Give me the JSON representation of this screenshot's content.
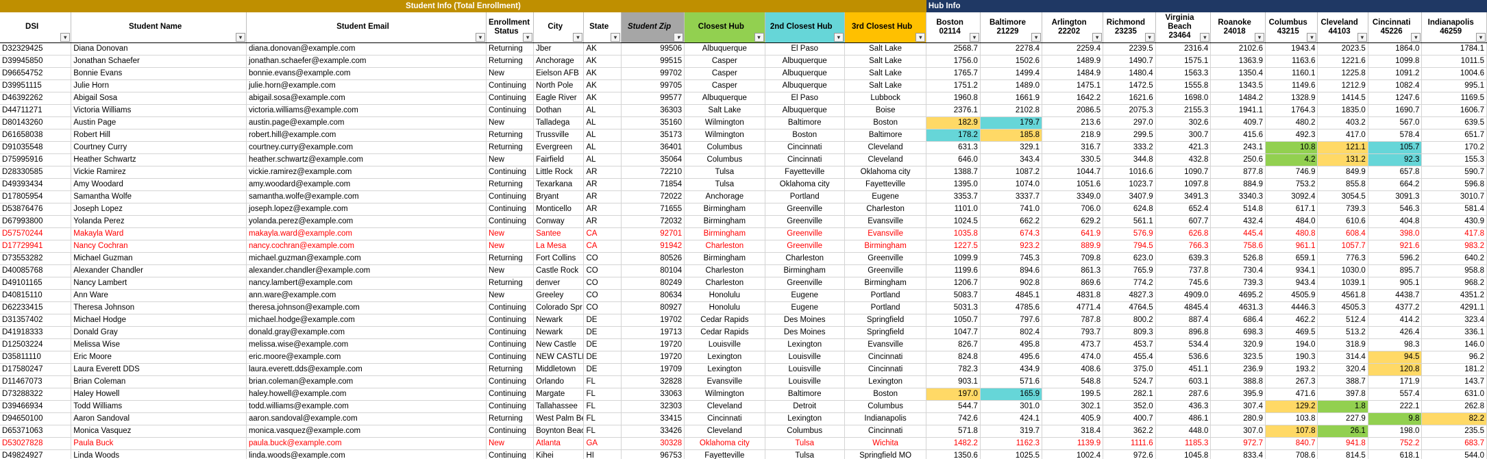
{
  "groups": {
    "student_info": "Student Info (Total Enrollment)",
    "hub_info": "Hub Info"
  },
  "headers": [
    {
      "label": "DSI"
    },
    {
      "label": "Student Name"
    },
    {
      "label": "Student Email"
    },
    {
      "label": "Enrollment Status"
    },
    {
      "label": "City"
    },
    {
      "label": "State"
    },
    {
      "label": "Student Zip"
    },
    {
      "label": "Closest Hub"
    },
    {
      "label": "2nd Closest Hub"
    },
    {
      "label": "3rd Closest Hub"
    },
    {
      "label": "Boston",
      "zip": "02114"
    },
    {
      "label": "Baltimore",
      "zip": "21229"
    },
    {
      "label": "Arlington",
      "zip": "22202"
    },
    {
      "label": "Richmond",
      "zip": "23235"
    },
    {
      "label": "Virginia Beach",
      "zip": "23464"
    },
    {
      "label": "Roanoke",
      "zip": "24018"
    },
    {
      "label": "Columbus",
      "zip": "43215"
    },
    {
      "label": "Cleveland",
      "zip": "44103"
    },
    {
      "label": "Cincinnati",
      "zip": "45226"
    },
    {
      "label": "Indianapolis",
      "zip": "46259"
    }
  ],
  "colors": {
    "student_group": "#bf8f00",
    "hub_group": "#1f3864",
    "closest": "#92d050",
    "second": "#66d6d8",
    "third": "#ffc000",
    "zip_header": "#a6a6a6",
    "red_row": "#ff0000",
    "hl_yellow": "#ffd966",
    "hl_cyan": "#66d6d8",
    "hl_green": "#92d050"
  },
  "rows": [
    {
      "cells": [
        "D32329425",
        "Diana Donovan",
        "diana.donovan@example.com",
        "Returning",
        "Jber",
        "AK",
        "99506",
        "Albuquerque",
        "El Paso",
        "Salt Lake",
        "2568.7",
        "2278.4",
        "2259.4",
        "2239.5",
        "2316.4",
        "2102.6",
        "1943.4",
        "2023.5",
        "1864.0",
        "1784.1"
      ]
    },
    {
      "cells": [
        "D39945850",
        "Jonathan Schaefer",
        "jonathan.schaefer@example.com",
        "Returning",
        "Anchorage",
        "AK",
        "99515",
        "Casper",
        "Albuquerque",
        "Salt Lake",
        "1756.0",
        "1502.6",
        "1489.9",
        "1490.7",
        "1575.1",
        "1363.9",
        "1163.6",
        "1221.6",
        "1099.8",
        "1011.5"
      ]
    },
    {
      "cells": [
        "D96654752",
        "Bonnie Evans",
        "bonnie.evans@example.com",
        "New",
        "Eielson AFB",
        "AK",
        "99702",
        "Casper",
        "Albuquerque",
        "Salt Lake",
        "1765.7",
        "1499.4",
        "1484.9",
        "1480.4",
        "1563.3",
        "1350.4",
        "1160.1",
        "1225.8",
        "1091.2",
        "1004.6"
      ]
    },
    {
      "cells": [
        "D39951115",
        "Julie Horn",
        "julie.horn@example.com",
        "Continuing",
        "North Pole",
        "AK",
        "99705",
        "Casper",
        "Albuquerque",
        "Salt Lake",
        "1751.2",
        "1489.0",
        "1475.1",
        "1472.5",
        "1555.8",
        "1343.5",
        "1149.6",
        "1212.9",
        "1082.4",
        "995.1"
      ]
    },
    {
      "cells": [
        "D46392262",
        "Abigail Sosa",
        "abigail.sosa@example.com",
        "Continuing",
        "Eagle River",
        "AK",
        "99577",
        "Albuquerque",
        "El Paso",
        "Lubbock",
        "1960.8",
        "1661.9",
        "1642.2",
        "1621.6",
        "1698.0",
        "1484.2",
        "1328.9",
        "1414.5",
        "1247.6",
        "1169.5"
      ]
    },
    {
      "cells": [
        "D44711271",
        "Victoria Williams",
        "victoria.williams@example.com",
        "Continuing",
        "Dothan",
        "AL",
        "36303",
        "Salt Lake",
        "Albuquerque",
        "Boise",
        "2376.1",
        "2102.8",
        "2086.5",
        "2075.3",
        "2155.3",
        "1941.1",
        "1764.3",
        "1835.0",
        "1690.7",
        "1606.7"
      ]
    },
    {
      "cells": [
        "D80143260",
        "Austin Page",
        "austin.page@example.com",
        "New",
        "Talladega",
        "AL",
        "35160",
        "Wilmington",
        "Baltimore",
        "Boston",
        "182.9",
        "179.7",
        "213.6",
        "297.0",
        "302.6",
        "409.7",
        "480.2",
        "403.2",
        "567.0",
        "639.5"
      ],
      "hl": {
        "10": "y",
        "11": "c"
      }
    },
    {
      "cells": [
        "D61658038",
        "Robert Hill",
        "robert.hill@example.com",
        "Returning",
        "Trussville",
        "AL",
        "35173",
        "Wilmington",
        "Boston",
        "Baltimore",
        "178.2",
        "185.8",
        "218.9",
        "299.5",
        "300.7",
        "415.6",
        "492.3",
        "417.0",
        "578.4",
        "651.7"
      ],
      "hl": {
        "10": "c",
        "11": "y"
      }
    },
    {
      "cells": [
        "D91035548",
        "Courtney Curry",
        "courtney.curry@example.com",
        "Returning",
        "Evergreen",
        "AL",
        "36401",
        "Columbus",
        "Cincinnati",
        "Cleveland",
        "631.3",
        "329.1",
        "316.7",
        "333.2",
        "421.3",
        "243.1",
        "10.8",
        "121.1",
        "105.7",
        "170.2"
      ],
      "hl": {
        "16": "g",
        "17": "y",
        "18": "c"
      }
    },
    {
      "cells": [
        "D75995916",
        "Heather Schwartz",
        "heather.schwartz@example.com",
        "New",
        "Fairfield",
        "AL",
        "35064",
        "Columbus",
        "Cincinnati",
        "Cleveland",
        "646.0",
        "343.4",
        "330.5",
        "344.8",
        "432.8",
        "250.6",
        "4.2",
        "131.2",
        "92.3",
        "155.3"
      ],
      "hl": {
        "16": "g",
        "17": "y",
        "18": "c"
      }
    },
    {
      "cells": [
        "D28330585",
        "Vickie Ramirez",
        "vickie.ramirez@example.com",
        "Continuing",
        "Little Rock",
        "AR",
        "72210",
        "Tulsa",
        "Fayetteville",
        "Oklahoma city",
        "1388.7",
        "1087.2",
        "1044.7",
        "1016.6",
        "1090.7",
        "877.8",
        "746.9",
        "849.9",
        "657.8",
        "590.7"
      ]
    },
    {
      "cells": [
        "D49393434",
        "Amy Woodard",
        "amy.woodard@example.com",
        "Returning",
        "Texarkana",
        "AR",
        "71854",
        "Tulsa",
        "Oklahoma city",
        "Fayetteville",
        "1395.0",
        "1074.0",
        "1051.6",
        "1023.7",
        "1097.8",
        "884.9",
        "753.2",
        "855.8",
        "664.2",
        "596.8"
      ]
    },
    {
      "cells": [
        "D17805954",
        "Samantha Wolfe",
        "samantha.wolfe@example.com",
        "Continuing",
        "Bryant",
        "AR",
        "72022",
        "Anchorage",
        "Portland",
        "Eugene",
        "3353.7",
        "3337.7",
        "3349.0",
        "3407.9",
        "3491.3",
        "3340.3",
        "3092.4",
        "3054.5",
        "3091.3",
        "3010.7"
      ]
    },
    {
      "cells": [
        "D53876476",
        "Joseph Lopez",
        "joseph.lopez@example.com",
        "Continuing",
        "Monticello",
        "AR",
        "71655",
        "Birmingham",
        "Greenville",
        "Charleston",
        "1101.0",
        "741.0",
        "706.0",
        "624.8",
        "652.4",
        "514.8",
        "617.1",
        "739.3",
        "546.3",
        "581.4"
      ]
    },
    {
      "cells": [
        "D67993800",
        "Yolanda Perez",
        "yolanda.perez@example.com",
        "Continuing",
        "Conway",
        "AR",
        "72032",
        "Birmingham",
        "Greenville",
        "Evansville",
        "1024.5",
        "662.2",
        "629.2",
        "561.1",
        "607.7",
        "432.4",
        "484.0",
        "610.6",
        "404.8",
        "430.9"
      ]
    },
    {
      "red": true,
      "cells": [
        "D57570244",
        "Makayla Ward",
        "makayla.ward@example.com",
        "New",
        "Santee",
        "CA",
        "92701",
        "Birmingham",
        "Greenville",
        "Evansville",
        "1035.8",
        "674.3",
        "641.9",
        "576.9",
        "626.8",
        "445.4",
        "480.8",
        "608.4",
        "398.0",
        "417.8"
      ]
    },
    {
      "red": true,
      "cells": [
        "D17729941",
        "Nancy Cochran",
        "nancy.cochran@example.com",
        "New",
        "La Mesa",
        "CA",
        "91942",
        "Charleston",
        "Greenville",
        "Birmingham",
        "1227.5",
        "923.2",
        "889.9",
        "794.5",
        "766.3",
        "758.6",
        "961.1",
        "1057.7",
        "921.6",
        "983.2"
      ]
    },
    {
      "cells": [
        "D73553282",
        "Michael Guzman",
        "michael.guzman@example.com",
        "Returning",
        "Fort Collins",
        "CO",
        "80526",
        "Birmingham",
        "Charleston",
        "Greenville",
        "1099.9",
        "745.3",
        "709.8",
        "623.0",
        "639.3",
        "526.8",
        "659.1",
        "776.3",
        "596.2",
        "640.2"
      ]
    },
    {
      "cells": [
        "D40085768",
        "Alexander Chandler",
        "alexander.chandler@example.com",
        "New",
        "Castle Rock",
        "CO",
        "80104",
        "Charleston",
        "Birmingham",
        "Greenville",
        "1199.6",
        "894.6",
        "861.3",
        "765.9",
        "737.8",
        "730.4",
        "934.1",
        "1030.0",
        "895.7",
        "958.8"
      ]
    },
    {
      "cells": [
        "D49101165",
        "Nancy Lambert",
        "nancy.lambert@example.com",
        "Returning",
        "denver",
        "CO",
        "80249",
        "Charleston",
        "Greenville",
        "Birmingham",
        "1206.7",
        "902.8",
        "869.6",
        "774.2",
        "745.6",
        "739.3",
        "943.4",
        "1039.1",
        "905.1",
        "968.2"
      ]
    },
    {
      "cells": [
        "D40815110",
        "Ann Ware",
        "ann.ware@example.com",
        "New",
        "Greeley",
        "CO",
        "80634",
        "Honolulu",
        "Eugene",
        "Portland",
        "5083.7",
        "4845.1",
        "4831.8",
        "4827.3",
        "4909.0",
        "4695.2",
        "4505.9",
        "4561.8",
        "4438.7",
        "4351.2"
      ]
    },
    {
      "cells": [
        "D62233415",
        "Theresa Johnson",
        "theresa.johnson@example.com",
        "Continuing",
        "Colorado Spr",
        "CO",
        "80927",
        "Honolulu",
        "Eugene",
        "Portland",
        "5031.3",
        "4785.6",
        "4771.4",
        "4764.5",
        "4845.4",
        "4631.3",
        "4446.3",
        "4505.3",
        "4377.2",
        "4291.1"
      ]
    },
    {
      "cells": [
        "D31357402",
        "Michael Hodge",
        "michael.hodge@example.com",
        "Continuing",
        "Newark",
        "DE",
        "19702",
        "Cedar Rapids",
        "Des Moines",
        "Springfield",
        "1050.7",
        "797.6",
        "787.8",
        "800.2",
        "887.4",
        "686.4",
        "462.2",
        "512.4",
        "414.2",
        "323.4"
      ]
    },
    {
      "cells": [
        "D41918333",
        "Donald Gray",
        "donald.gray@example.com",
        "Continuing",
        "Newark",
        "DE",
        "19713",
        "Cedar Rapids",
        "Des Moines",
        "Springfield",
        "1047.7",
        "802.4",
        "793.7",
        "809.3",
        "896.8",
        "698.3",
        "469.5",
        "513.2",
        "426.4",
        "336.1"
      ]
    },
    {
      "cells": [
        "D12503224",
        "Melissa Wise",
        "melissa.wise@example.com",
        "Continuing",
        "New Castle",
        "DE",
        "19720",
        "Louisville",
        "Lexington",
        "Evansville",
        "826.7",
        "495.8",
        "473.7",
        "453.7",
        "534.4",
        "320.9",
        "194.0",
        "318.9",
        "98.3",
        "146.0"
      ]
    },
    {
      "cells": [
        "D35811110",
        "Eric Moore",
        "eric.moore@example.com",
        "Continuing",
        "NEW CASTLE",
        "DE",
        "19720",
        "Lexington",
        "Louisville",
        "Cincinnati",
        "824.8",
        "495.6",
        "474.0",
        "455.4",
        "536.6",
        "323.5",
        "190.3",
        "314.4",
        "94.5",
        "96.2"
      ],
      "hl": {
        "18": "y"
      }
    },
    {
      "cells": [
        "D17580247",
        "Laura Everett DDS",
        "laura.everett.dds@example.com",
        "Returning",
        "Middletown",
        "DE",
        "19709",
        "Lexington",
        "Louisville",
        "Cincinnati",
        "782.3",
        "434.9",
        "408.6",
        "375.0",
        "451.1",
        "236.9",
        "193.2",
        "320.4",
        "120.8",
        "181.2"
      ],
      "hl": {
        "18": "y"
      }
    },
    {
      "cells": [
        "D11467073",
        "Brian Coleman",
        "brian.coleman@example.com",
        "Continuing",
        "Orlando",
        "FL",
        "32828",
        "Evansville",
        "Louisville",
        "Lexington",
        "903.1",
        "571.6",
        "548.8",
        "524.7",
        "603.1",
        "388.8",
        "267.3",
        "388.7",
        "171.9",
        "143.7"
      ]
    },
    {
      "cells": [
        "D73288322",
        "Haley Howell",
        "haley.howell@example.com",
        "Continuing",
        "Margate",
        "FL",
        "33063",
        "Wilmington",
        "Baltimore",
        "Boston",
        "197.0",
        "165.9",
        "199.5",
        "282.1",
        "287.6",
        "395.9",
        "471.6",
        "397.8",
        "557.4",
        "631.0"
      ],
      "hl": {
        "10": "y",
        "11": "c"
      }
    },
    {
      "cells": [
        "D39466934",
        "Todd Williams",
        "todd.williams@example.com",
        "Continuing",
        "Tallahassee",
        "FL",
        "32303",
        "Cleveland",
        "Detroit",
        "Columbus",
        "544.7",
        "301.0",
        "302.1",
        "352.0",
        "436.3",
        "307.4",
        "129.2",
        "1.8",
        "222.1",
        "262.8"
      ],
      "hl": {
        "16": "y",
        "17": "g"
      }
    },
    {
      "cells": [
        "D94650100",
        "Aaron Sandoval",
        "aaron.sandoval@example.com",
        "Returning",
        "West Palm Be",
        "FL",
        "33415",
        "Cincinnati",
        "Lexington",
        "Indianapolis",
        "742.6",
        "424.1",
        "405.9",
        "400.7",
        "486.1",
        "280.9",
        "103.8",
        "227.9",
        "9.8",
        "82.2"
      ],
      "hl": {
        "18": "g",
        "19": "y"
      }
    },
    {
      "cells": [
        "D65371063",
        "Monica Vasquez",
        "monica.vasquez@example.com",
        "Continuing",
        "Boynton Beac",
        "FL",
        "33426",
        "Cleveland",
        "Columbus",
        "Cincinnati",
        "571.8",
        "319.7",
        "318.4",
        "362.2",
        "448.0",
        "307.0",
        "107.8",
        "26.1",
        "198.0",
        "235.5"
      ],
      "hl": {
        "16": "y",
        "17": "g"
      }
    },
    {
      "red": true,
      "cells": [
        "D53027828",
        "Paula Buck",
        "paula.buck@example.com",
        "New",
        "Atlanta",
        "GA",
        "30328",
        "Oklahoma city",
        "Tulsa",
        "Wichita",
        "1482.2",
        "1162.3",
        "1139.9",
        "1111.6",
        "1185.3",
        "972.7",
        "840.7",
        "941.8",
        "752.2",
        "683.7"
      ]
    },
    {
      "cells": [
        "D49824927",
        "Linda Woods",
        "linda.woods@example.com",
        "Continuing",
        "Kihei",
        "HI",
        "96753",
        "Fayetteville",
        "Tulsa",
        "Springfield MO",
        "1350.6",
        "1025.5",
        "1002.4",
        "972.6",
        "1045.8",
        "833.4",
        "708.6",
        "814.5",
        "618.1",
        "544.0"
      ]
    }
  ]
}
